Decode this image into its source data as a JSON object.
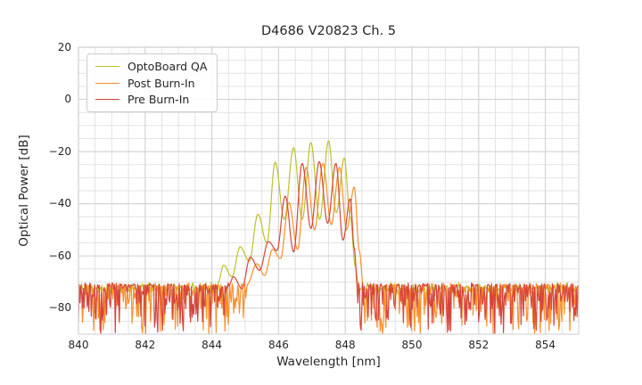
{
  "chart_data": {
    "type": "line",
    "title": "D4686 V20823 Ch. 5",
    "xlabel": "Wavelength [nm]",
    "ylabel": "Optical Power [dB]",
    "xlim": [
      840,
      855
    ],
    "ylim": [
      -90,
      20
    ],
    "x_ticks": [
      840,
      842,
      844,
      846,
      848,
      850,
      852,
      854
    ],
    "y_ticks": [
      20,
      0,
      -20,
      -40,
      -60,
      -80
    ],
    "minor_grid_x_step_nm": 0.5,
    "minor_grid_y_step_db": 5,
    "grid": true,
    "legend_position": "upper left",
    "series": [
      {
        "name": "OptoBoard QA",
        "color": "#bfc02d",
        "peak_wavelength_nm": 847.5,
        "peak_power_db": -16,
        "noise_floor": {
          "top": -72.3,
          "jitter_up": 2.2,
          "spike_depth": 2.6,
          "spike_power": 1
        },
        "envelope": [
          [
            844.18,
            -70.5
          ],
          [
            844.35,
            -63.5
          ],
          [
            844.6,
            -68
          ],
          [
            844.85,
            -56.5
          ],
          [
            845.12,
            -62
          ],
          [
            845.38,
            -44
          ],
          [
            845.65,
            -55
          ],
          [
            845.9,
            -24
          ],
          [
            846.17,
            -46
          ],
          [
            846.45,
            -18.5
          ],
          [
            846.71,
            -46
          ],
          [
            846.97,
            -16.5
          ],
          [
            847.23,
            -46
          ],
          [
            847.5,
            -15.8
          ],
          [
            847.73,
            -43.5
          ],
          [
            847.97,
            -22.5
          ],
          [
            848.15,
            -45
          ],
          [
            848.3,
            -64
          ],
          [
            848.4,
            -71.5
          ]
        ]
      },
      {
        "name": "Post Burn-In",
        "color": "#f7902c",
        "peak_wavelength_nm": 847.33,
        "peak_power_db": -24.5,
        "noise_floor": {
          "top": -71.8,
          "jitter_up": 1.4,
          "spike_depth": 19,
          "spike_power": 3
        },
        "envelope": [
          [
            845.05,
            -71
          ],
          [
            845.35,
            -63
          ],
          [
            845.58,
            -67.5
          ],
          [
            845.82,
            -57.5
          ],
          [
            846.06,
            -61
          ],
          [
            846.31,
            -39.5
          ],
          [
            846.57,
            -57.5
          ],
          [
            846.83,
            -26
          ],
          [
            847.08,
            -50
          ],
          [
            847.33,
            -24.5
          ],
          [
            847.58,
            -48
          ],
          [
            847.83,
            -26
          ],
          [
            848.04,
            -50
          ],
          [
            848.27,
            -33.5
          ],
          [
            848.42,
            -58
          ],
          [
            848.55,
            -73
          ]
        ]
      },
      {
        "name": "Pre Burn-In",
        "color": "#d6453c",
        "peak_wavelength_nm": 847.22,
        "peak_power_db": -23.8,
        "noise_floor": {
          "top": -71.5,
          "jitter_up": 1.2,
          "spike_depth": 19,
          "spike_power": 3
        },
        "envelope": [
          [
            844.5,
            -71.5
          ],
          [
            844.65,
            -68
          ],
          [
            844.9,
            -72.5
          ],
          [
            845.15,
            -60.5
          ],
          [
            845.43,
            -65.5
          ],
          [
            845.7,
            -54.5
          ],
          [
            845.95,
            -58
          ],
          [
            846.2,
            -37
          ],
          [
            846.45,
            -58.5
          ],
          [
            846.71,
            -24.5
          ],
          [
            846.97,
            -49.5
          ],
          [
            847.22,
            -23.8
          ],
          [
            847.47,
            -47.5
          ],
          [
            847.72,
            -24.5
          ],
          [
            847.93,
            -54
          ],
          [
            848.15,
            -38
          ],
          [
            848.27,
            -57
          ],
          [
            848.37,
            -73
          ]
        ]
      }
    ]
  }
}
